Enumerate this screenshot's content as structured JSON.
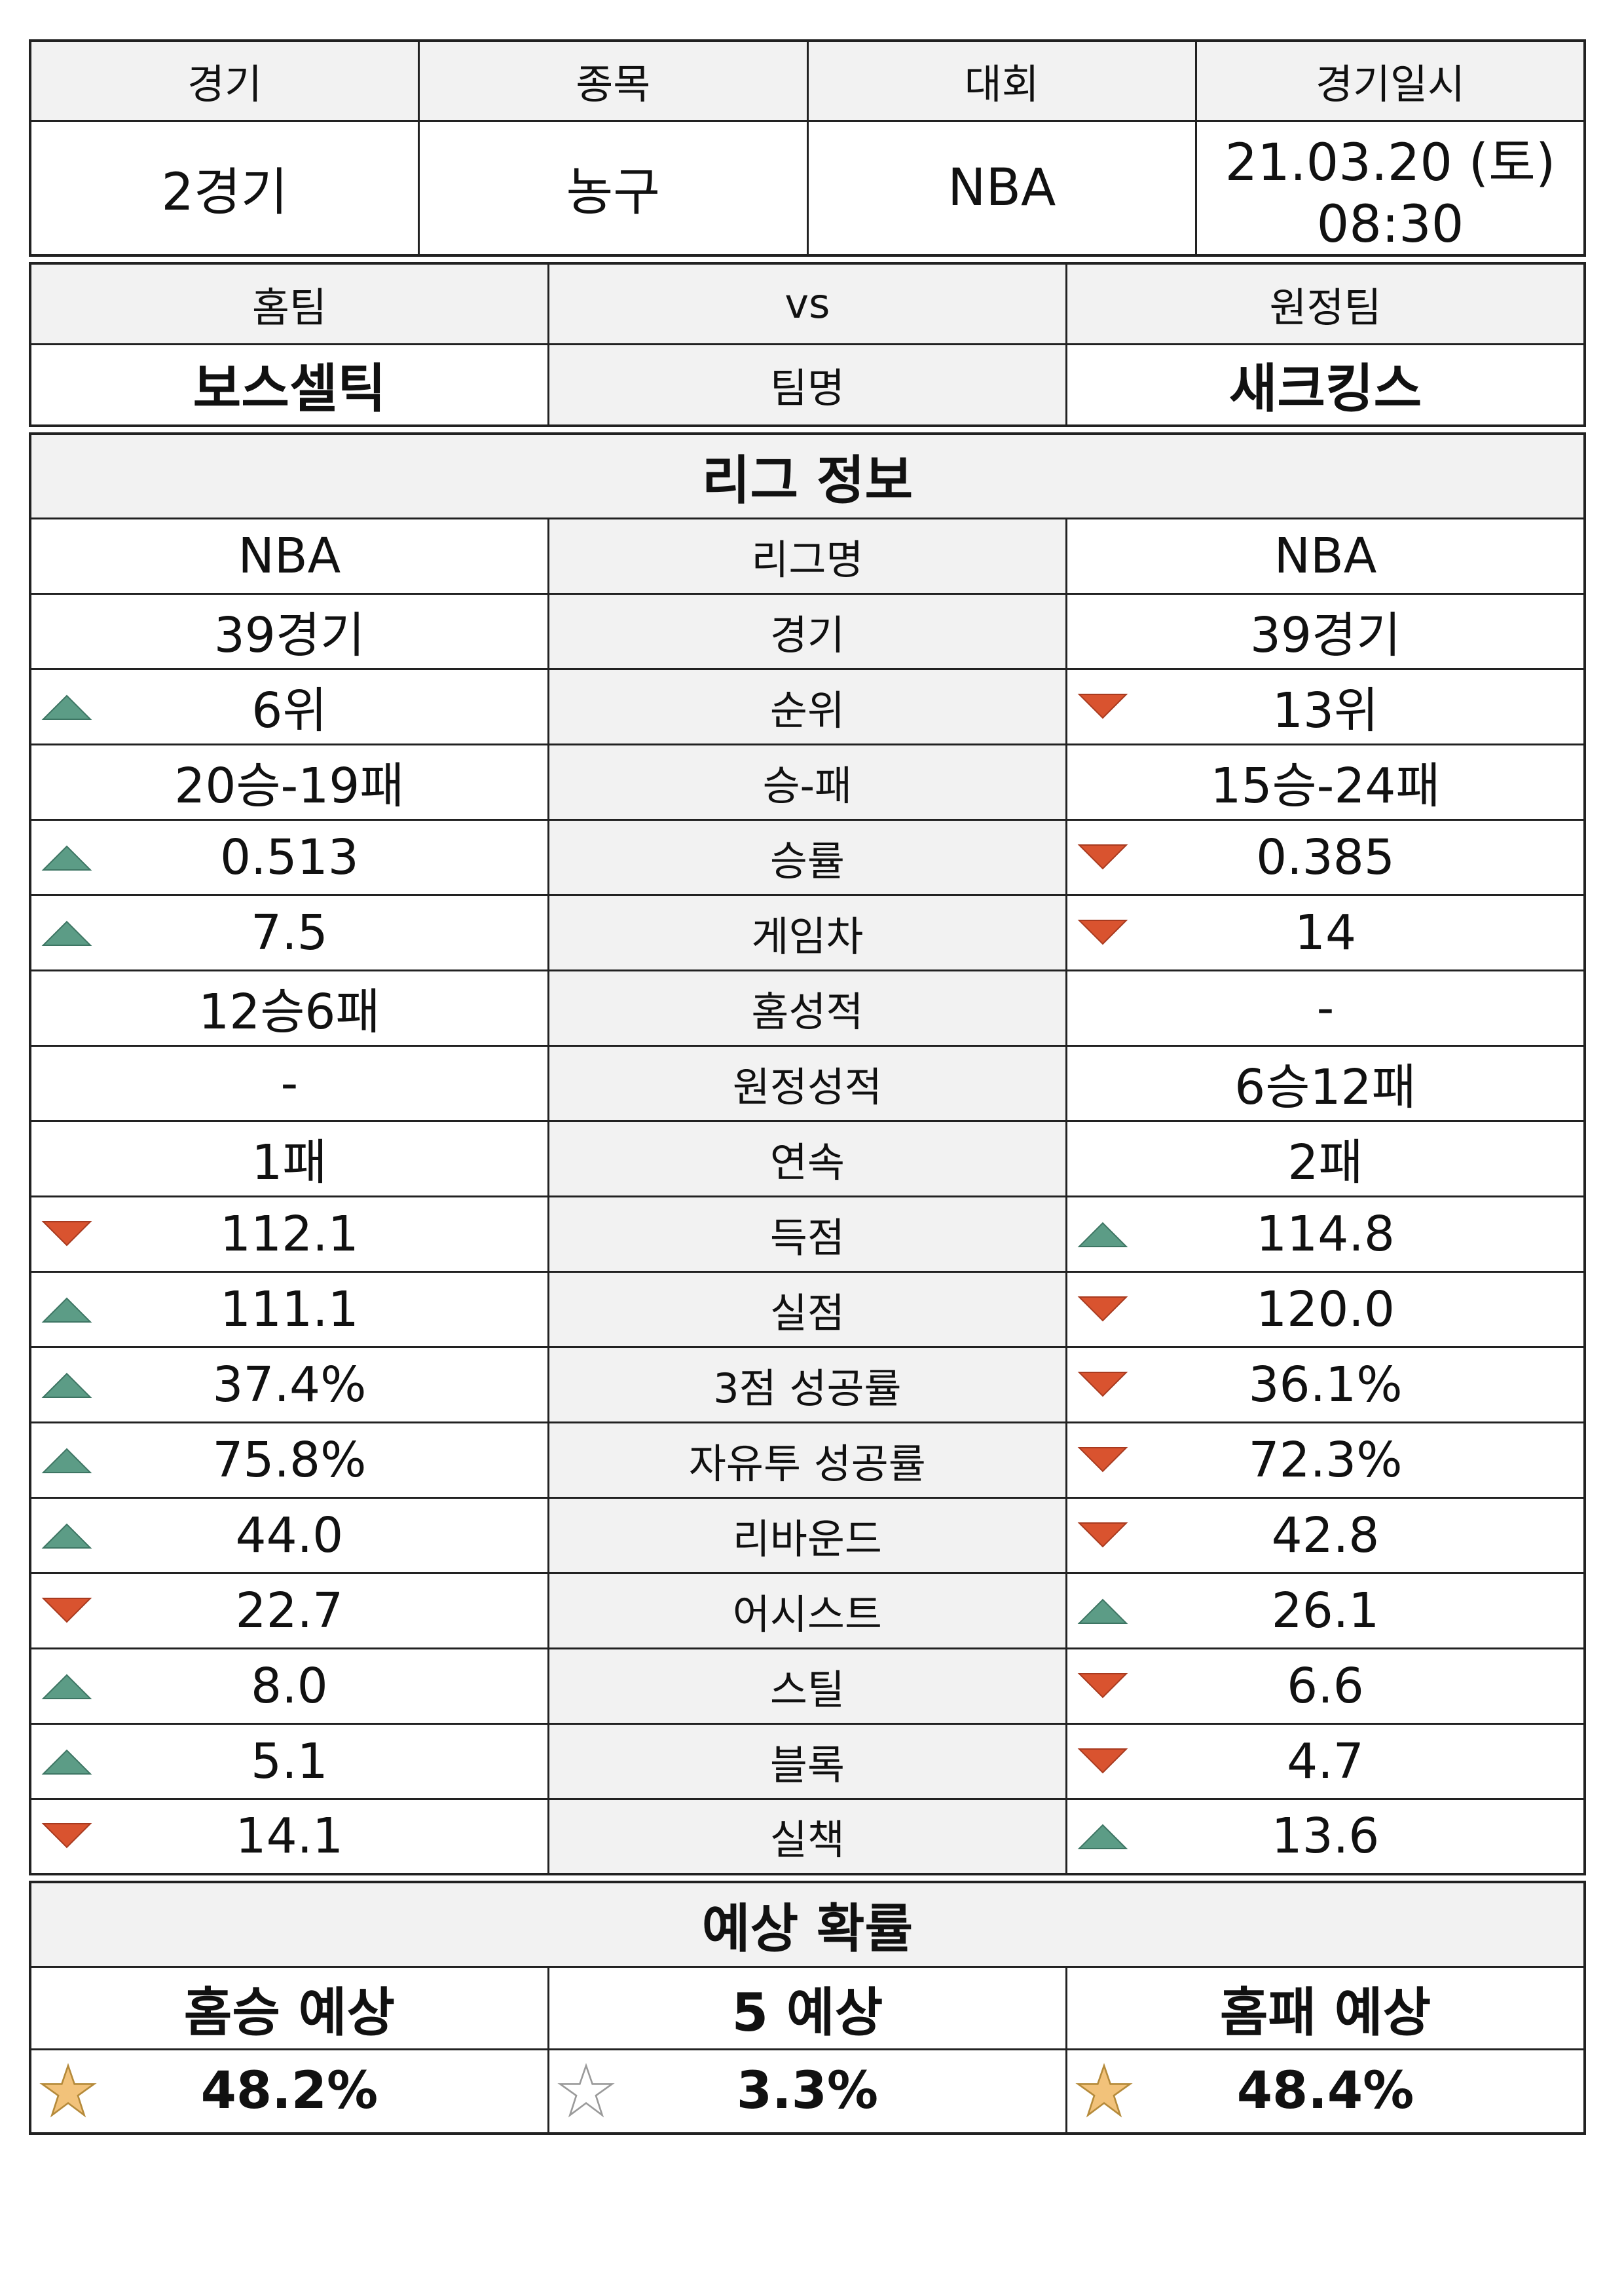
{
  "match_info": {
    "headers": [
      "경기",
      "종목",
      "대회",
      "경기일시"
    ],
    "values": [
      "2경기",
      "농구",
      "NBA",
      "21.03.20 (토) 08:30"
    ]
  },
  "teams": {
    "home_label": "홈팀",
    "vs_label": "vs",
    "away_label": "원정팀",
    "home_name": "보스셀틱",
    "name_label": "팀명",
    "away_name": "새크킹스"
  },
  "league_section_title": "리그 정보",
  "stats": [
    {
      "label": "리그명",
      "home": "NBA",
      "away": "NBA",
      "home_ind": "",
      "away_ind": ""
    },
    {
      "label": "경기",
      "home": "39경기",
      "away": "39경기",
      "home_ind": "",
      "away_ind": ""
    },
    {
      "label": "순위",
      "home": "6위",
      "away": "13위",
      "home_ind": "up",
      "away_ind": "down"
    },
    {
      "label": "승-패",
      "home": "20승-19패",
      "away": "15승-24패",
      "home_ind": "",
      "away_ind": ""
    },
    {
      "label": "승률",
      "home": "0.513",
      "away": "0.385",
      "home_ind": "up",
      "away_ind": "down"
    },
    {
      "label": "게임차",
      "home": "7.5",
      "away": "14",
      "home_ind": "up",
      "away_ind": "down"
    },
    {
      "label": "홈성적",
      "home": "12승6패",
      "away": "-",
      "home_ind": "",
      "away_ind": ""
    },
    {
      "label": "원정성적",
      "home": "-",
      "away": "6승12패",
      "home_ind": "",
      "away_ind": ""
    },
    {
      "label": "연속",
      "home": "1패",
      "away": "2패",
      "home_ind": "",
      "away_ind": ""
    },
    {
      "label": "득점",
      "home": "112.1",
      "away": "114.8",
      "home_ind": "down",
      "away_ind": "up"
    },
    {
      "label": "실점",
      "home": "111.1",
      "away": "120.0",
      "home_ind": "up",
      "away_ind": "down"
    },
    {
      "label": "3점 성공률",
      "home": "37.4%",
      "away": "36.1%",
      "home_ind": "up",
      "away_ind": "down"
    },
    {
      "label": "자유투 성공률",
      "home": "75.8%",
      "away": "72.3%",
      "home_ind": "up",
      "away_ind": "down"
    },
    {
      "label": "리바운드",
      "home": "44.0",
      "away": "42.8",
      "home_ind": "up",
      "away_ind": "down"
    },
    {
      "label": "어시스트",
      "home": "22.7",
      "away": "26.1",
      "home_ind": "down",
      "away_ind": "up"
    },
    {
      "label": "스틸",
      "home": "8.0",
      "away": "6.6",
      "home_ind": "up",
      "away_ind": "down"
    },
    {
      "label": "블록",
      "home": "5.1",
      "away": "4.7",
      "home_ind": "up",
      "away_ind": "down"
    },
    {
      "label": "실책",
      "home": "14.1",
      "away": "13.6",
      "home_ind": "down",
      "away_ind": "up"
    }
  ],
  "prediction": {
    "title": "예상 확률",
    "headers": [
      "홈승 예상",
      "5 예상",
      "홈패 예상"
    ],
    "values": [
      "48.2%",
      "3.3%",
      "48.4%"
    ],
    "stars": [
      "filled",
      "empty",
      "filled"
    ]
  },
  "colors": {
    "up": "#5c9c86",
    "down": "#d9532f",
    "star_filled": "#f2c27a",
    "star_stroke": "#b58a3a",
    "header_bg": "#f2f2f2"
  }
}
